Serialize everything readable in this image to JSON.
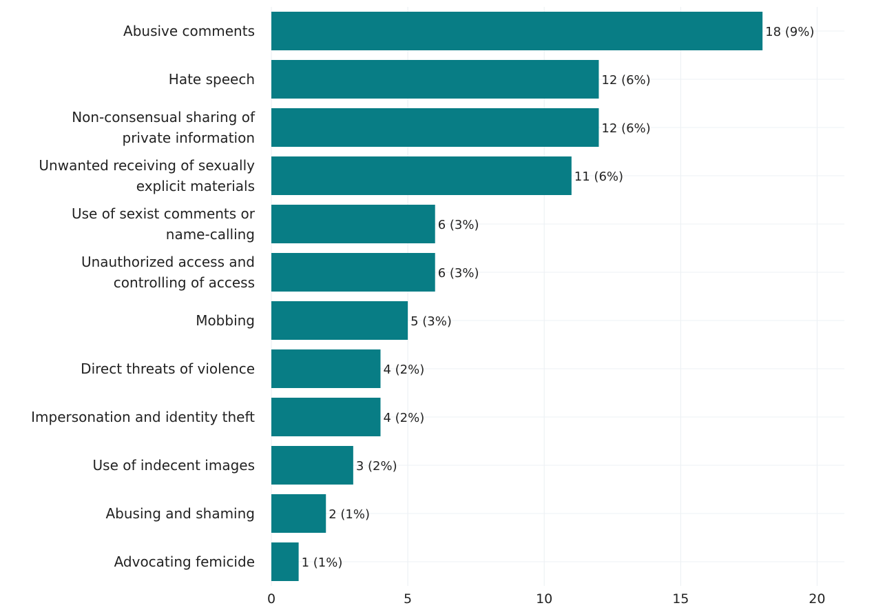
{
  "chart_data": {
    "type": "bar",
    "orientation": "horizontal",
    "title": "",
    "xlabel": "",
    "ylabel": "",
    "categories": [
      [
        "Abusive comments"
      ],
      [
        "Hate speech"
      ],
      [
        "Non-consensual sharing of",
        "private information"
      ],
      [
        "Unwanted receiving of sexually",
        "explicit materials"
      ],
      [
        "Use of sexist comments or",
        "name-calling"
      ],
      [
        "Unauthorized access and",
        "controlling of access"
      ],
      [
        "Mobbing"
      ],
      [
        "Direct threats of violence"
      ],
      [
        "Impersonation and identity theft"
      ],
      [
        "Use of indecent images"
      ],
      [
        "Abusing and shaming"
      ],
      [
        "Advocating femicide"
      ]
    ],
    "values": [
      18,
      12,
      12,
      11,
      6,
      6,
      5,
      4,
      4,
      3,
      2,
      1
    ],
    "data_labels": [
      "18 (9%)",
      "12 (6%)",
      "12 (6%)",
      "11 (6%)",
      "6 (3%)",
      "6 (3%)",
      "5 (3%)",
      "4 (2%)",
      "4 (2%)",
      "3 (2%)",
      "2 (1%)",
      "1 (1%)"
    ],
    "xlim": [
      0,
      21
    ],
    "xticks": [
      0,
      5,
      10,
      15,
      20
    ],
    "xtick_labels": [
      "0",
      "5",
      "10",
      "15",
      "20"
    ],
    "grid": true,
    "legend": "none",
    "bar_color": "#087d85"
  }
}
